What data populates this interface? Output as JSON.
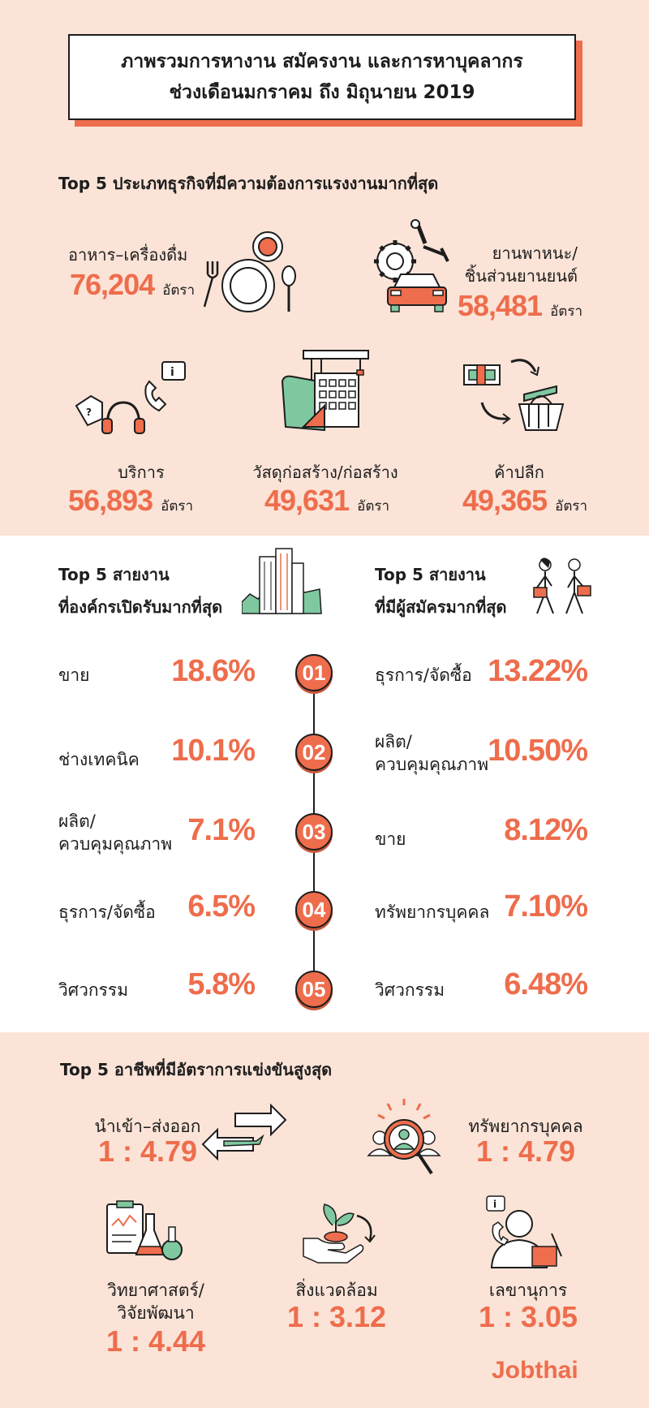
{
  "header": {
    "title_line1": "ภาพรวมการหางาน สมัครงาน และการหาบุคลากร",
    "title_line2": "ช่วงเดือนมกราคม ถึง มิถุนายน 2019"
  },
  "top_business": {
    "heading": "Top 5 ประเภทธุรกิจที่มีความต้องการแรงงานมากที่สุด",
    "unit": "อัตรา",
    "items": [
      {
        "label": "อาหาร–เครื่องดื่ม",
        "value": "76,204",
        "icon": "dining-icon"
      },
      {
        "label_line1": "ยานพาหนะ/",
        "label_line2": "ชิ้นส่วนยานยนต์",
        "value": "58,481",
        "icon": "car-gear-icon"
      },
      {
        "label": "บริการ",
        "value": "56,893",
        "icon": "headset-phone-icon"
      },
      {
        "label": "วัสดุก่อสร้าง/ก่อสร้าง",
        "value": "49,631",
        "icon": "construction-icon"
      },
      {
        "label": "ค้าปลีก",
        "value": "49,365",
        "icon": "money-basket-icon"
      }
    ]
  },
  "rankings": {
    "left_heading_line1": "Top 5 สายงาน",
    "left_heading_line2": "ที่องค์กรเปิดรับมากที่สุด",
    "right_heading_line1": "Top 5 สายงาน",
    "right_heading_line2": "ที่มีผู้สมัครมากที่สุด",
    "rows": [
      {
        "rank": "01",
        "left_label": "ขาย",
        "left_label2": "",
        "left_pct": "18.6%",
        "right_label": "ธุรการ/จัดซื้อ",
        "right_label2": "",
        "right_pct": "13.22%"
      },
      {
        "rank": "02",
        "left_label": "ช่างเทคนิค",
        "left_label2": "",
        "left_pct": "10.1%",
        "right_label": "ผลิต/",
        "right_label2": "ควบคุมคุณภาพ",
        "right_pct": "10.50%"
      },
      {
        "rank": "03",
        "left_label": "ผลิต/",
        "left_label2": "ควบคุมคุณภาพ",
        "left_pct": "7.1%",
        "right_label": "ขาย",
        "right_label2": "",
        "right_pct": "8.12%"
      },
      {
        "rank": "04",
        "left_label": "ธุรการ/จัดซื้อ",
        "left_label2": "",
        "left_pct": "6.5%",
        "right_label": "ทรัพยากรบุคคล",
        "right_label2": "",
        "right_pct": "7.10%"
      },
      {
        "rank": "05",
        "left_label": "วิศวกรรม",
        "left_label2": "",
        "left_pct": "5.8%",
        "right_label": "วิศวกรรม",
        "right_label2": "",
        "right_pct": "6.48%"
      }
    ]
  },
  "competition": {
    "heading": "Top 5 อาชีพที่มีอัตราการแข่งขันสูงสุด",
    "items": [
      {
        "label": "นำเข้า–ส่งออก",
        "ratio": "1 : 4.79",
        "icon": "import-export-icon"
      },
      {
        "label": "ทรัพยากรบุคคล",
        "ratio": "1 : 4.79",
        "icon": "hr-search-icon"
      },
      {
        "label_line1": "วิทยาศาสตร์/",
        "label_line2": "วิจัยพัฒนา",
        "ratio": "1 : 4.44",
        "icon": "lab-icon"
      },
      {
        "label": "สิ่งแวดล้อม",
        "ratio": "1 : 3.12",
        "icon": "plant-hand-icon"
      },
      {
        "label": "เลขานุการ",
        "ratio": "1 : 3.05",
        "icon": "secretary-icon"
      }
    ]
  },
  "brand": "Jobthai",
  "colors": {
    "accent": "#ee6d4c",
    "background": "#fbe3d7",
    "ink": "#1d1d1d",
    "green": "#7fc8a0"
  }
}
